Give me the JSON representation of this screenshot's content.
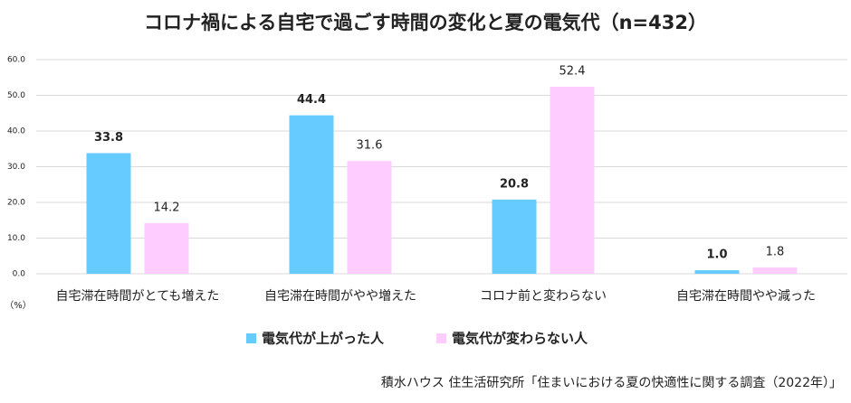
{
  "chart_data": {
    "type": "bar",
    "title": "コロナ禍による自宅で過ごす時間の変化と夏の電気代（n=432）",
    "y_unit": "（%）",
    "source": "積水ハウス 住生活研究所「住まいにおける夏の快適性に関する調査（2022年）」",
    "categories": [
      "自宅滞在時間がとても増えた",
      "自宅滞在時間がやや増えた",
      "コロナ前と変わらない",
      "自宅滞在時間やや減った"
    ],
    "series": [
      {
        "name": "電気代が上がった人",
        "color": "#66ccff",
        "values": [
          33.8,
          44.4,
          20.8,
          1.0
        ],
        "value_labels": [
          "33.8",
          "44.4",
          "20.8",
          "1.0"
        ]
      },
      {
        "name": "電気代が変わらない人",
        "color": "#ffccff",
        "values": [
          14.2,
          31.6,
          52.4,
          1.8
        ],
        "value_labels": [
          "14.2",
          "31.6",
          "52.4",
          "1.8"
        ]
      }
    ],
    "ylim": [
      0,
      60
    ],
    "yticks": [
      {
        "value": 0,
        "label": "0.0"
      },
      {
        "value": 10,
        "label": "10.0"
      },
      {
        "value": 20,
        "label": "20.0"
      },
      {
        "value": 30,
        "label": "30.0"
      },
      {
        "value": 40,
        "label": "40.0"
      },
      {
        "value": 50,
        "label": "50.0"
      },
      {
        "value": 60,
        "label": "60.0"
      }
    ],
    "grid": true
  }
}
